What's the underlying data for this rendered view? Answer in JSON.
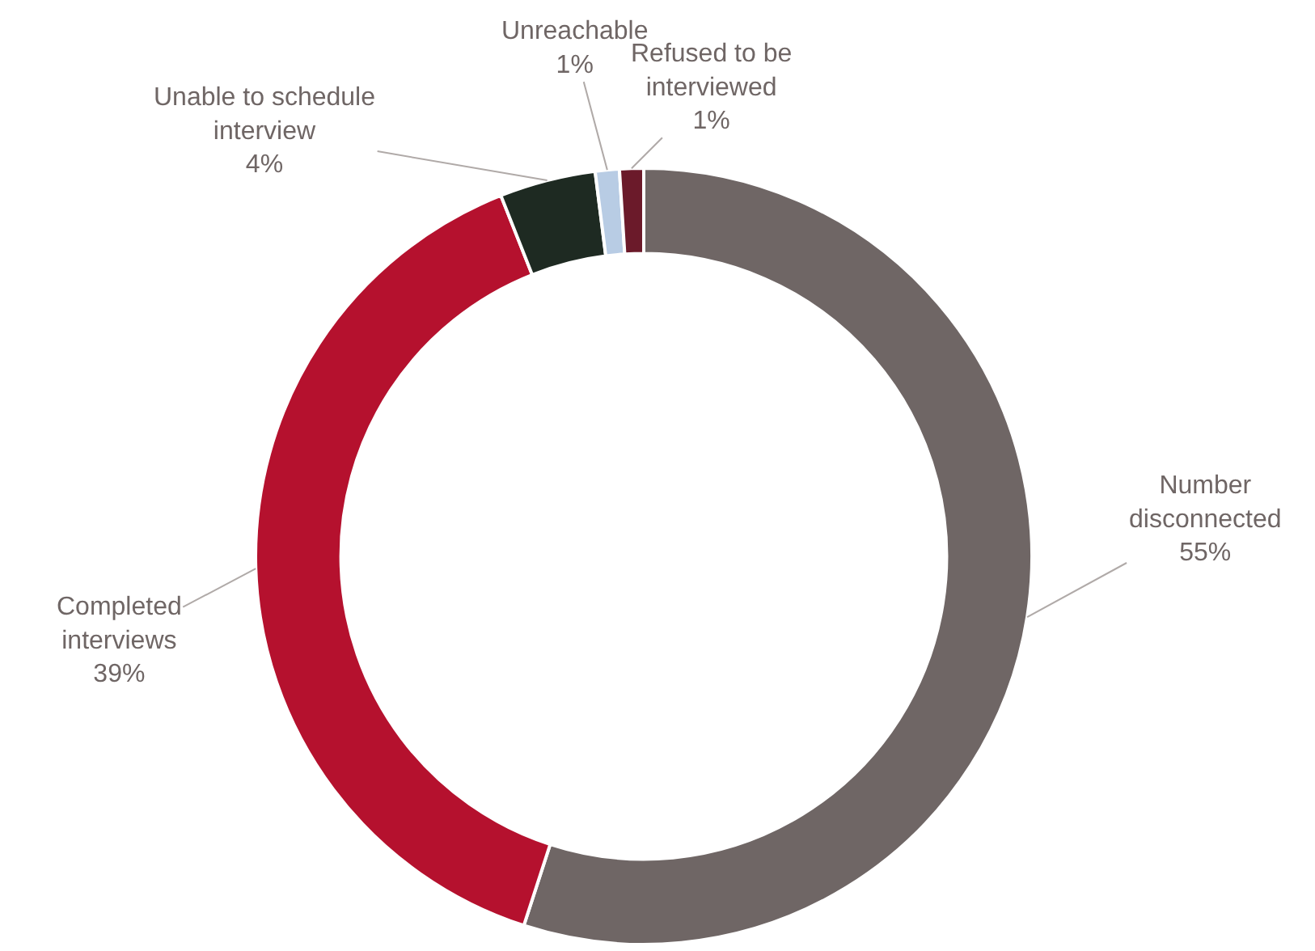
{
  "chart_data": {
    "type": "donut",
    "categories": [
      "Number disconnected",
      "Completed interviews",
      "Unable to schedule interview",
      "Unreachable",
      "Refused to be interviewed"
    ],
    "values": [
      55,
      39,
      4,
      1,
      1
    ],
    "value_labels": [
      "55%",
      "39%",
      "4%",
      "1%",
      "1%"
    ],
    "colors": [
      "#6f6665",
      "#b5112e",
      "#1e2a22",
      "#b8cce4",
      "#6b1a2a"
    ],
    "legend": false
  }
}
